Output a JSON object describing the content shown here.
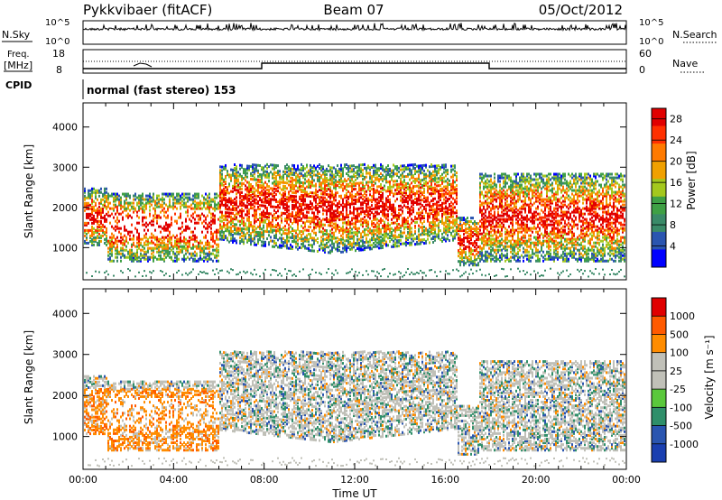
{
  "header": {
    "station": "Pykkvibaer (fitACF)",
    "beam": "Beam 07",
    "date": "05/Oct/2012"
  },
  "status_rows": {
    "nsky_label": "N.Sky",
    "nsky_ticks": [
      "10^5",
      "10^0"
    ],
    "nsearch_label": "N.Search",
    "nsearch_ticks": [
      "10^5",
      "10^0"
    ],
    "freq_label_1": "Freq.",
    "freq_label_2": "[MHz]",
    "freq_ticks": [
      "18",
      "8"
    ],
    "nave_label": "Nave",
    "nave_ticks": [
      "60",
      "0"
    ],
    "cpid_label": "CPID",
    "cpid_text": "normal (fast stereo) 153"
  },
  "colors": {
    "power_scale": [
      "#0000ff",
      "#2a55b0",
      "#3a8a68",
      "#3fa045",
      "#a4c81e",
      "#f0a000",
      "#ff7a00",
      "#ff3000",
      "#e00000"
    ],
    "velocity_scale": [
      "#1a3fb0",
      "#2a55b0",
      "#2f8f6a",
      "#5ac83c",
      "#c0c0b8",
      "#c0c0b8",
      "#ff8c00",
      "#ff5a00",
      "#e00000"
    ]
  },
  "chart_data": [
    {
      "type": "heatmap",
      "title": "",
      "xlabel": "",
      "ylabel": "Slant Range [km]",
      "xlim": [
        "00:00",
        "24:00"
      ],
      "ylim": [
        200,
        4600
      ],
      "yticks": [
        1000,
        2000,
        3000,
        4000
      ],
      "xticks": [
        "00:00",
        "04:00",
        "08:00",
        "12:00",
        "16:00",
        "20:00",
        "00:00"
      ],
      "colorbar": {
        "label": "Power [dB]",
        "ticks": [
          4,
          8,
          12,
          16,
          20,
          24,
          28
        ],
        "range": [
          0,
          30
        ]
      }
    },
    {
      "type": "heatmap",
      "title": "",
      "xlabel": "Time UT",
      "ylabel": "Slant Range [km]",
      "xlim": [
        "00:00",
        "24:00"
      ],
      "ylim": [
        200,
        4600
      ],
      "yticks": [
        1000,
        2000,
        3000,
        4000
      ],
      "xticks": [
        "00:00",
        "04:00",
        "08:00",
        "12:00",
        "16:00",
        "20:00",
        "00:00"
      ],
      "colorbar": {
        "label": "Velocity [m s⁻¹]",
        "ticks": [
          1000,
          500,
          100,
          25,
          -25,
          -100,
          -500,
          -1000
        ]
      }
    }
  ]
}
